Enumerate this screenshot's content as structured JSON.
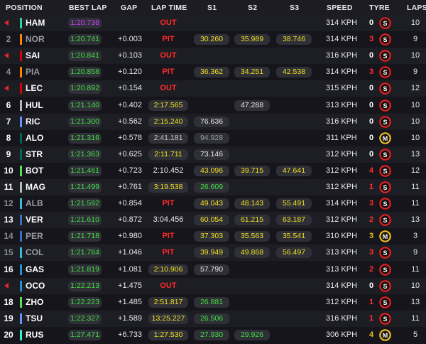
{
  "header": {
    "position": "POSITION",
    "best_lap": "BEST LAP",
    "gap": "GAP",
    "lap_time": "LAP TIME",
    "s1": "S1",
    "s2": "S2",
    "s3": "S3",
    "speed": "SPEED",
    "tyre": "TYRE",
    "laps": "LAPS"
  },
  "colors": {
    "red_team": "#e8262d",
    "green_timing": "#40e040",
    "purple_timing": "#d040ff",
    "yellow_timing": "#f0e020",
    "soft_tyre": "#e82020",
    "medium_tyre": "#f0c020"
  },
  "rows": [
    {
      "pos": "",
      "out": true,
      "team": "#2fd1a8",
      "driver": "HAM",
      "best": "1:20.738",
      "best_purple": true,
      "gap": "",
      "lap": "OUT",
      "lap_style": "text",
      "s1": "",
      "s2": "",
      "s3": "",
      "speed": "314 KPH",
      "pits": "0",
      "tyre": "S",
      "laps": "10"
    },
    {
      "pos": "2",
      "dim": true,
      "team": "#ff8700",
      "driver": "NOR",
      "best": "1:20.741",
      "gap": "+0.003",
      "lap": "PIT",
      "lap_style": "text",
      "s1": "30.260",
      "s1c": "yel",
      "s2": "35.989",
      "s2c": "yel",
      "s3": "38.746",
      "s3c": "yel",
      "speed": "314 KPH",
      "pits": "3",
      "tyre": "S",
      "laps": "9"
    },
    {
      "pos": "",
      "out": true,
      "team": "#dc0000",
      "driver": "SAI",
      "best": "1:20.841",
      "gap": "+0.103",
      "lap": "OUT",
      "lap_style": "text",
      "s1": "",
      "s2": "",
      "s3": "",
      "speed": "316 KPH",
      "pits": "0",
      "tyre": "S",
      "laps": "10"
    },
    {
      "pos": "4",
      "dim": true,
      "team": "#ff8700",
      "driver": "PIA",
      "best": "1:20.858",
      "gap": "+0.120",
      "lap": "PIT",
      "lap_style": "text",
      "s1": "36.362",
      "s1c": "yel",
      "s2": "34.251",
      "s2c": "yel",
      "s3": "42.538",
      "s3c": "yel",
      "speed": "314 KPH",
      "pits": "3",
      "tyre": "S",
      "laps": "9"
    },
    {
      "pos": "",
      "out": true,
      "team": "#dc0000",
      "driver": "LEC",
      "best": "1:20.892",
      "gap": "+0.154",
      "lap": "OUT",
      "lap_style": "text",
      "s1": "",
      "s2": "",
      "s3": "",
      "speed": "315 KPH",
      "pits": "0",
      "tyre": "S",
      "laps": "12"
    },
    {
      "pos": "6",
      "team": "#b6babd",
      "driver": "HUL",
      "best": "1:21.140",
      "gap": "+0.402",
      "lap": "2:17.565",
      "lap_style": "yel",
      "s1": "",
      "s2": "47.288",
      "s2c": "wht",
      "s3": "",
      "speed": "313 KPH",
      "pits": "0",
      "tyre": "S",
      "laps": "10"
    },
    {
      "pos": "7",
      "team": "#6692ff",
      "driver": "RIC",
      "best": "1:21.300",
      "gap": "+0.562",
      "lap": "2:15.240",
      "lap_style": "yel",
      "s1": "76.636",
      "s1c": "wht",
      "s2": "",
      "s3": "",
      "speed": "316 KPH",
      "pits": "0",
      "tyre": "S",
      "laps": "10"
    },
    {
      "pos": "8",
      "team": "#00665e",
      "driver": "ALO",
      "best": "1:21.316",
      "gap": "+0.578",
      "lap": "2:41.181",
      "lap_style": "gry",
      "s1": "94.928",
      "s1c": "gry",
      "s2": "",
      "s3": "",
      "speed": "311 KPH",
      "pits": "0",
      "tyre": "M",
      "laps": "10"
    },
    {
      "pos": "9",
      "team": "#00665e",
      "driver": "STR",
      "best": "1:21.363",
      "gap": "+0.625",
      "lap": "2:11.711",
      "lap_style": "yel",
      "s1": "73.146",
      "s1c": "wht",
      "s2": "",
      "s3": "",
      "speed": "312 KPH",
      "pits": "0",
      "tyre": "S",
      "laps": "13"
    },
    {
      "pos": "10",
      "team": "#52e252",
      "driver": "BOT",
      "best": "1:21.461",
      "gap": "+0.723",
      "lap": "2:10.452",
      "lap_style": "plain",
      "s1": "43.096",
      "s1c": "yel",
      "s2": "39.715",
      "s2c": "yel",
      "s3": "47.641",
      "s3c": "yel",
      "speed": "312 KPH",
      "pits": "4",
      "tyre": "S",
      "laps": "12"
    },
    {
      "pos": "11",
      "team": "#b6babd",
      "driver": "MAG",
      "best": "1:21.499",
      "gap": "+0.761",
      "lap": "3:19.538",
      "lap_style": "yel",
      "s1": "26.609",
      "s1c": "grn",
      "s2": "",
      "s3": "",
      "speed": "312 KPH",
      "pits": "1",
      "tyre": "S",
      "laps": "11"
    },
    {
      "pos": "12",
      "dim": true,
      "team": "#37bedd",
      "driver": "ALB",
      "best": "1:21.592",
      "gap": "+0.854",
      "lap": "PIT",
      "lap_style": "text",
      "s1": "49.043",
      "s1c": "yel",
      "s2": "48.143",
      "s2c": "yel",
      "s3": "55.491",
      "s3c": "yel",
      "speed": "314 KPH",
      "pits": "3",
      "tyre": "S",
      "laps": "11"
    },
    {
      "pos": "13",
      "team": "#3671c6",
      "driver": "VER",
      "best": "1:21.610",
      "gap": "+0.872",
      "lap": "3:04.456",
      "lap_style": "plain",
      "s1": "60.054",
      "s1c": "yel",
      "s2": "61.215",
      "s2c": "yel",
      "s3": "63.187",
      "s3c": "yel",
      "speed": "312 KPH",
      "pits": "2",
      "tyre": "S",
      "laps": "13"
    },
    {
      "pos": "14",
      "dim": true,
      "team": "#3671c6",
      "driver": "PER",
      "best": "1:21.718",
      "gap": "+0.980",
      "lap": "PIT",
      "lap_style": "text",
      "s1": "37.303",
      "s1c": "yel",
      "s2": "35.563",
      "s2c": "yel",
      "s3": "35.541",
      "s3c": "yel",
      "speed": "310 KPH",
      "pits": "3",
      "tyre": "M",
      "laps": "3"
    },
    {
      "pos": "15",
      "dim": true,
      "team": "#37bedd",
      "driver": "COL",
      "best": "1:21.784",
      "gap": "+1.046",
      "lap": "PIT",
      "lap_style": "text",
      "s1": "39.949",
      "s1c": "yel",
      "s2": "49.868",
      "s2c": "yel",
      "s3": "56.497",
      "s3c": "yel",
      "speed": "313 KPH",
      "pits": "3",
      "tyre": "S",
      "laps": "9"
    },
    {
      "pos": "16",
      "team": "#2293d1",
      "driver": "GAS",
      "best": "1:21.819",
      "gap": "+1.081",
      "lap": "2:10.906",
      "lap_style": "yel",
      "s1": "57.790",
      "s1c": "wht",
      "s2": "",
      "s3": "",
      "speed": "313 KPH",
      "pits": "2",
      "tyre": "S",
      "laps": "11"
    },
    {
      "pos": "",
      "out": true,
      "team": "#2293d1",
      "driver": "OCO",
      "best": "1:22.213",
      "gap": "+1.475",
      "lap": "OUT",
      "lap_style": "text",
      "s1": "",
      "s2": "",
      "s3": "",
      "speed": "314 KPH",
      "pits": "0",
      "tyre": "S",
      "laps": "10"
    },
    {
      "pos": "18",
      "team": "#52e252",
      "driver": "ZHO",
      "best": "1:22.223",
      "gap": "+1.485",
      "lap": "2:51.817",
      "lap_style": "yel",
      "s1": "26.881",
      "s1c": "grn",
      "s2": "",
      "s3": "",
      "speed": "312 KPH",
      "pits": "1",
      "tyre": "S",
      "laps": "13"
    },
    {
      "pos": "19",
      "team": "#6692ff",
      "driver": "TSU",
      "best": "1:22.327",
      "gap": "+1.589",
      "lap": "13:25.227",
      "lap_style": "yel",
      "s1": "26.506",
      "s1c": "grn",
      "s2": "",
      "s3": "",
      "speed": "316 KPH",
      "pits": "1",
      "tyre": "S",
      "laps": "11"
    },
    {
      "pos": "20",
      "team": "#27f4d2",
      "driver": "RUS",
      "best": "1:27.471",
      "gap": "+6.733",
      "lap": "1:27.530",
      "lap_style": "yel",
      "s1": "27.930",
      "s1c": "grn",
      "s2": "29.926",
      "s2c": "grn",
      "s3": "",
      "speed": "306 KPH",
      "pits": "4",
      "tyre": "M",
      "laps": "5"
    }
  ]
}
